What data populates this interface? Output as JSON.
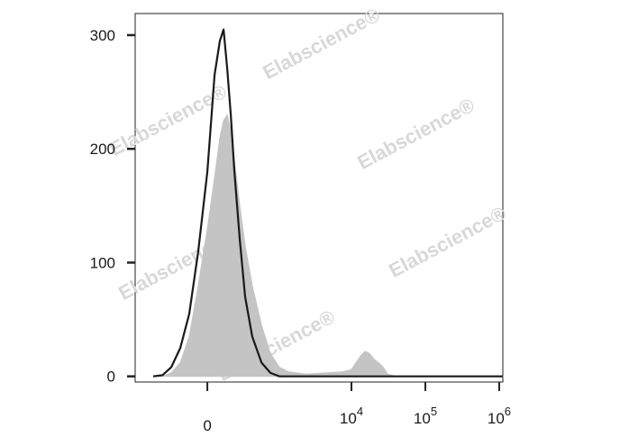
{
  "chart_data": {
    "type": "histogram-overlay",
    "watermark": "Elabscience®",
    "xscale": "asinh",
    "xlim": [
      -1050,
      1120000
    ],
    "xticks": [
      0,
      {
        "value": 10000,
        "label": "10",
        "exponent": "4"
      },
      {
        "value": 100000,
        "label": "10",
        "exponent": "5"
      },
      {
        "value": 1000000,
        "label": "10",
        "exponent": "6"
      }
    ],
    "ylim": [
      -5,
      319
    ],
    "yticks": [
      0,
      100,
      200,
      300
    ],
    "series": [
      {
        "color": "#1a1a1a",
        "style": "line",
        "x": [
          -585,
          -426,
          -309,
          -212,
          -133,
          -64,
          0,
          51,
          90,
          118,
          148,
          179,
          212,
          267,
          329,
          426,
          585,
          784,
          1048,
          2457,
          13300,
          1120000
        ],
        "values": [
          0,
          1,
          8,
          25,
          55,
          110,
          180,
          265,
          295,
          305,
          270,
          230,
          180,
          120,
          70,
          35,
          12,
          3,
          0,
          0,
          0,
          0
        ]
      },
      {
        "color": "#c4c4c4",
        "style": "area",
        "x": [
          -585,
          -426,
          -309,
          -212,
          -133,
          -64,
          0,
          51,
          90,
          118,
          148,
          179,
          212,
          267,
          329,
          426,
          585,
          784,
          1048,
          1393,
          2457,
          4300,
          7550,
          10000,
          11500,
          13300,
          15300,
          17600,
          20300,
          23300,
          26900,
          30900,
          40800,
          125000,
          388000,
          1120000
        ],
        "values": [
          0,
          0,
          3,
          12,
          35,
          80,
          130,
          175,
          210,
          225,
          230,
          215,
          190,
          150,
          115,
          80,
          45,
          20,
          8,
          4,
          2,
          3,
          4,
          6,
          12,
          18,
          22,
          20,
          15,
          12,
          8,
          2,
          0,
          0,
          0,
          0
        ]
      }
    ]
  }
}
